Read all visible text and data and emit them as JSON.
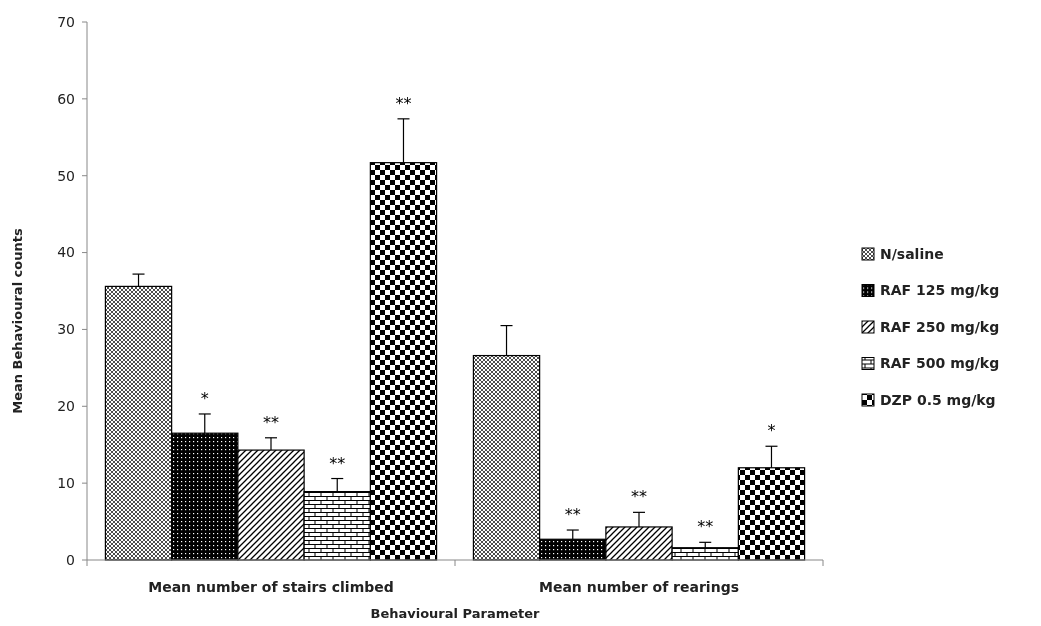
{
  "chart_data": {
    "type": "bar",
    "xlabel": "Behavioural Parameter",
    "ylabel": "Mean Behavioural counts",
    "categories": [
      "Mean number of stairs climbed",
      "Mean number of rearings"
    ],
    "series": [
      {
        "name": "N/saline",
        "color": "#000000",
        "values": [
          35.6,
          26.6
        ],
        "errors": [
          1.6,
          3.9
        ],
        "value_labels": [
          null,
          null
        ]
      },
      {
        "name": "RAF 125 mg/kg",
        "color": "#000000",
        "values": [
          16.5,
          2.7
        ],
        "errors": [
          2.5,
          1.2
        ],
        "value_labels": [
          "*",
          "**"
        ]
      },
      {
        "name": "RAF 250 mg/kg",
        "color": "#000000",
        "values": [
          14.3,
          4.3
        ],
        "errors": [
          1.6,
          1.9
        ],
        "value_labels": [
          "**",
          "**"
        ]
      },
      {
        "name": "RAF 500 mg/kg",
        "color": "#000000",
        "values": [
          8.9,
          1.6
        ],
        "errors": [
          1.7,
          0.7
        ],
        "value_labels": [
          "**",
          "**"
        ]
      },
      {
        "name": "DZP 0.5 mg/kg",
        "color": "#000000",
        "values": [
          51.7,
          12.0
        ],
        "errors": [
          5.7,
          2.8
        ],
        "value_labels": [
          "**",
          "*"
        ]
      }
    ],
    "ylim": [
      0,
      70
    ],
    "yticks": [
      0,
      10,
      20,
      30,
      40,
      50,
      60,
      70
    ],
    "grid": false,
    "legend": "right"
  }
}
